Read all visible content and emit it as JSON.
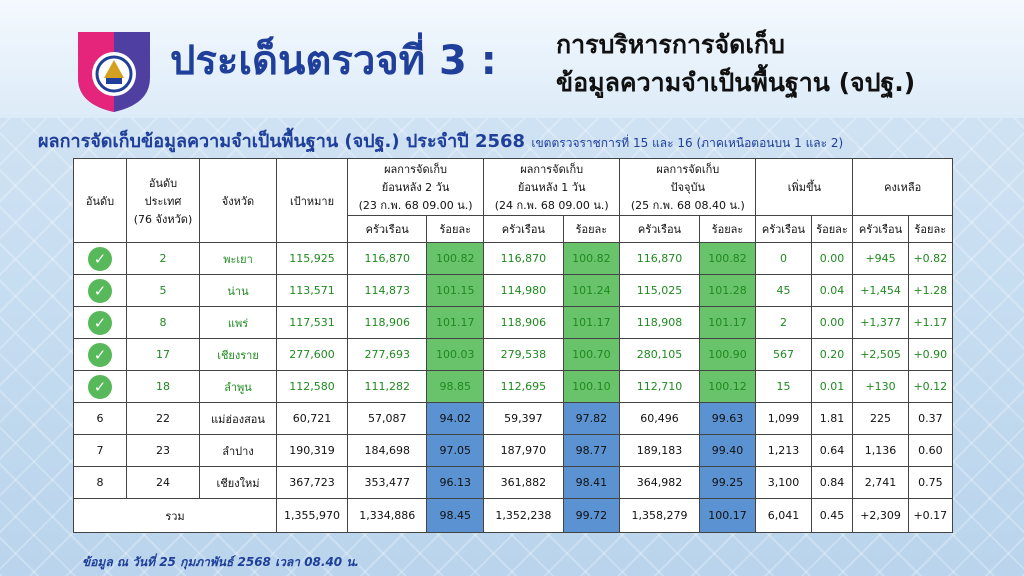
{
  "header": {
    "title": "ประเด็นตรวจที่ 3 :",
    "subtitle_line1": "การบริหารการจัดเก็บ",
    "subtitle_line2": "ข้อมูลความจำเป็นพื้นฐาน (จปฐ.)"
  },
  "subheading": {
    "main": "ผลการจัดเก็บข้อมูลความจำเป็นพื้นฐาน (จปฐ.) ประจำปี 2568",
    "detail": "เขตตรวจราชการที่ 15 และ 16 (ภาคเหนือตอนบน 1 และ 2)"
  },
  "table": {
    "headers": {
      "rank": "อันดับ",
      "national_rank": [
        "อันดับ",
        "ประเทศ",
        "(76 จังหวัด)"
      ],
      "province": "จังหวัด",
      "target": "เป้าหมาย",
      "back2": [
        "ผลการจัดเก็บ",
        "ย้อนหลัง 2 วัน",
        "(23 ก.พ. 68 09.00 น.)"
      ],
      "back1": [
        "ผลการจัดเก็บ",
        "ย้อนหลัง 1 วัน",
        "(24 ก.พ. 68 09.00 น.)"
      ],
      "current": [
        "ผลการจัดเก็บ",
        "ปัจจุบัน",
        "(25 ก.พ. 68 08.40 น.)"
      ],
      "increase": "เพิ่มขึ้น",
      "remaining": "คงเหลือ",
      "households": "ครัวเรือน",
      "percent": "ร้อยละ"
    },
    "rows": [
      {
        "rank": "",
        "done": true,
        "national": "2",
        "province": "พะเยา",
        "target": "115,925",
        "b2_hh": "116,870",
        "b2_pct": "100.82",
        "b1_hh": "116,870",
        "b1_pct": "100.82",
        "cur_hh": "116,870",
        "cur_pct": "100.82",
        "inc_hh": "0",
        "inc_pct": "0.00",
        "rem_hh": "+945",
        "rem_pct": "+0.82"
      },
      {
        "rank": "",
        "done": true,
        "national": "5",
        "province": "น่าน",
        "target": "113,571",
        "b2_hh": "114,873",
        "b2_pct": "101.15",
        "b1_hh": "114,980",
        "b1_pct": "101.24",
        "cur_hh": "115,025",
        "cur_pct": "101.28",
        "inc_hh": "45",
        "inc_pct": "0.04",
        "rem_hh": "+1,454",
        "rem_pct": "+1.28"
      },
      {
        "rank": "",
        "done": true,
        "national": "8",
        "province": "แพร่",
        "target": "117,531",
        "b2_hh": "118,906",
        "b2_pct": "101.17",
        "b1_hh": "118,906",
        "b1_pct": "101.17",
        "cur_hh": "118,908",
        "cur_pct": "101.17",
        "inc_hh": "2",
        "inc_pct": "0.00",
        "rem_hh": "+1,377",
        "rem_pct": "+1.17"
      },
      {
        "rank": "",
        "done": true,
        "national": "17",
        "province": "เชียงราย",
        "target": "277,600",
        "b2_hh": "277,693",
        "b2_pct": "100.03",
        "b1_hh": "279,538",
        "b1_pct": "100.70",
        "cur_hh": "280,105",
        "cur_pct": "100.90",
        "inc_hh": "567",
        "inc_pct": "0.20",
        "rem_hh": "+2,505",
        "rem_pct": "+0.90"
      },
      {
        "rank": "",
        "done": true,
        "national": "18",
        "province": "ลำพูน",
        "target": "112,580",
        "b2_hh": "111,282",
        "b2_pct": "98.85",
        "b1_hh": "112,695",
        "b1_pct": "100.10",
        "cur_hh": "112,710",
        "cur_pct": "100.12",
        "inc_hh": "15",
        "inc_pct": "0.01",
        "rem_hh": "+130",
        "rem_pct": "+0.12"
      },
      {
        "rank": "6",
        "done": false,
        "national": "22",
        "province": "แม่ฮ่องสอน",
        "target": "60,721",
        "b2_hh": "57,087",
        "b2_pct": "94.02",
        "b1_hh": "59,397",
        "b1_pct": "97.82",
        "cur_hh": "60,496",
        "cur_pct": "99.63",
        "inc_hh": "1,099",
        "inc_pct": "1.81",
        "rem_hh": "225",
        "rem_pct": "0.37"
      },
      {
        "rank": "7",
        "done": false,
        "national": "23",
        "province": "ลำปาง",
        "target": "190,319",
        "b2_hh": "184,698",
        "b2_pct": "97.05",
        "b1_hh": "187,970",
        "b1_pct": "98.77",
        "cur_hh": "189,183",
        "cur_pct": "99.40",
        "inc_hh": "1,213",
        "inc_pct": "0.64",
        "rem_hh": "1,136",
        "rem_pct": "0.60"
      },
      {
        "rank": "8",
        "done": false,
        "national": "24",
        "province": "เชียงใหม่",
        "target": "367,723",
        "b2_hh": "353,477",
        "b2_pct": "96.13",
        "b1_hh": "361,882",
        "b1_pct": "98.41",
        "cur_hh": "364,982",
        "cur_pct": "99.25",
        "inc_hh": "3,100",
        "inc_pct": "0.84",
        "rem_hh": "2,741",
        "rem_pct": "0.75"
      }
    ],
    "total": {
      "label": "รวม",
      "target": "1,355,970",
      "b2_hh": "1,334,886",
      "b2_pct": "98.45",
      "b1_hh": "1,352,238",
      "b1_pct": "99.72",
      "cur_hh": "1,358,279",
      "cur_pct": "100.17",
      "inc_hh": "6,041",
      "inc_pct": "0.45",
      "rem_hh": "+2,309",
      "rem_pct": "+0.17"
    }
  },
  "footer": {
    "note": "ข้อมูล ณ วันที่ 25 กุมภาพันธ์ 2568 เวลา 08.40 น."
  },
  "colors": {
    "title": "#1f3f9a",
    "green_cell": "#68c36b",
    "blue_cell": "#5b92d2",
    "green_text": "#1f8a1f"
  }
}
